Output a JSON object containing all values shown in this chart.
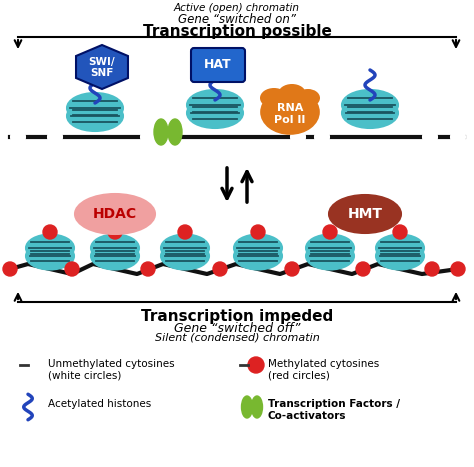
{
  "title_top1": "Active (open) chromatin",
  "title_top2": "Gene “switched on”",
  "title_top3": "Transcription possible",
  "title_bot1": "Transcription impeded",
  "title_bot2": "Gene “switched off”",
  "title_bot3": "Silent (condensed) chromatin",
  "bg_color": "#ffffff",
  "nuc_color": "#4bbfc8",
  "nuc_edge": "#1a5560",
  "dna_color": "#111111",
  "white_circle_color": "#ffffff",
  "red_circle_color": "#dd2222",
  "swi_snf_color": "#2255bb",
  "hat_color": "#2266cc",
  "rna_pol_color": "#e07818",
  "hdac_color": "#f0a0a0",
  "hmt_color": "#993322",
  "tf_color": "#78b830",
  "squiggle_color": "#2244bb",
  "legend_unmethyl_text": "Unmethylated cytosines\n(white circles)",
  "legend_methyl_text": "Methylated cytosines\n(red circles)",
  "legend_acetyl_text": "Acetylated histones",
  "legend_tf_text": "Transcription Factors /\nCo-activators"
}
